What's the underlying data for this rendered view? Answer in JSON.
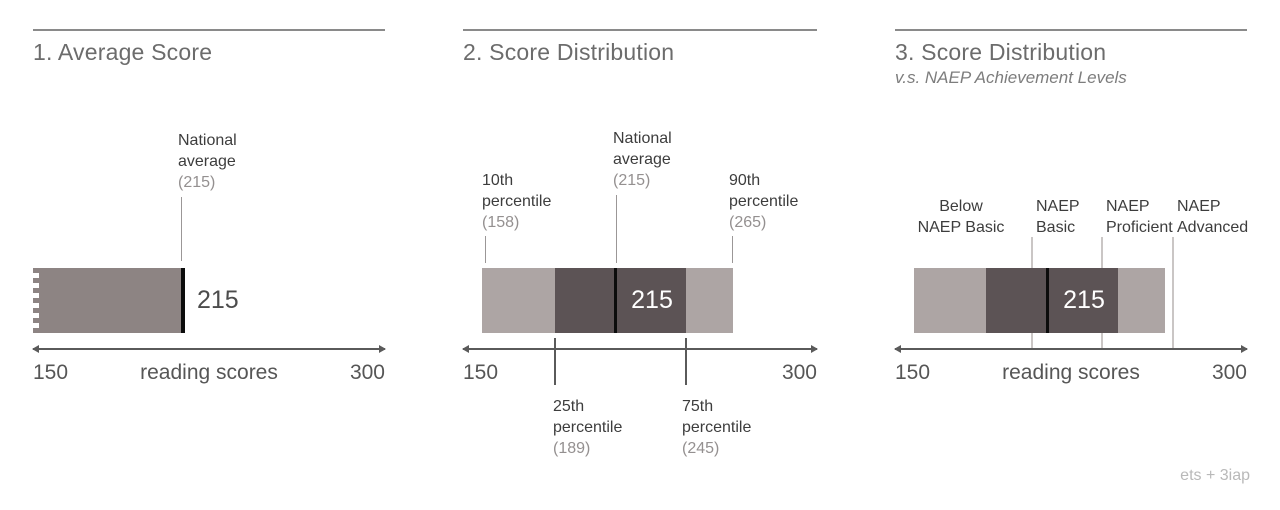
{
  "p1": {
    "title": "1. Average Score",
    "annotation": {
      "l1": "National",
      "l2": "average",
      "l3": "(215)"
    },
    "value": "215",
    "axis": {
      "min": "150",
      "label": "reading scores",
      "max": "300"
    }
  },
  "p2": {
    "title": "2. Score Distribution",
    "ann_p10": {
      "l1": "10th",
      "l2": "percentile",
      "l3": "(158)"
    },
    "ann_avg": {
      "l1": "National",
      "l2": "average",
      "l3": "(215)"
    },
    "ann_p90": {
      "l1": "90th",
      "l2": "percentile",
      "l3": "(265)"
    },
    "ann_p25": {
      "l1": "25th",
      "l2": "percentile",
      "l3": "(189)"
    },
    "ann_p75": {
      "l1": "75th",
      "l2": "percentile",
      "l3": "(245)"
    },
    "value": "215",
    "axis": {
      "min": "150",
      "max": "300"
    }
  },
  "p3": {
    "title": "3. Score Distribution",
    "subtitle": "v.s. NAEP Achievement Levels",
    "lvl_below": {
      "l1": "Below",
      "l2": "NAEP Basic"
    },
    "lvl_basic": {
      "l1": "NAEP",
      "l2": "Basic"
    },
    "lvl_prof": {
      "l1": "NAEP",
      "l2": "Proficient"
    },
    "lvl_adv": {
      "l1": "NAEP",
      "l2": "Advanced"
    },
    "value": "215",
    "axis": {
      "min": "150",
      "label": "reading scores",
      "max": "300"
    }
  },
  "credit": "ets + 3iap",
  "colors": {
    "bar_average": "#8d8483",
    "bar_outer_percentiles": "#ada5a4",
    "bar_inner_quartiles": "#5c5355",
    "median_line": "#0c0c0c",
    "value_on_dark": "#ffffff",
    "reference_line": "#cac6c5",
    "axis": "#5a5a5a",
    "title_gray": "#6c6c6c",
    "muted_label": "#949090"
  },
  "chart_data": [
    {
      "type": "bar",
      "title": "1. Average Score",
      "xlabel": "reading scores",
      "xlim": [
        150,
        300
      ],
      "series": [
        {
          "name": "National average",
          "value": 215
        }
      ],
      "annotations": [
        "National average (215)"
      ],
      "notes": "single horizontal bar from broken axis edge at 150 up to 215; black marker line at 215"
    },
    {
      "type": "bar",
      "title": "2. Score Distribution",
      "xlim": [
        150,
        300
      ],
      "distribution": {
        "p10": 158,
        "p25": 189,
        "national_average": 215,
        "p75": 245,
        "p90": 265
      },
      "segments": [
        {
          "from": 158,
          "to": 189,
          "shade": "light"
        },
        {
          "from": 189,
          "to": 245,
          "shade": "dark"
        },
        {
          "from": 245,
          "to": 265,
          "shade": "light"
        }
      ],
      "annotations": [
        "10th percentile (158)",
        "National average (215)",
        "90th percentile (265)",
        "25th percentile (189)",
        "75th percentile (245)"
      ]
    },
    {
      "type": "bar",
      "title": "3. Score Distribution",
      "subtitle": "v.s. NAEP Achievement Levels",
      "xlabel": "reading scores",
      "xlim": [
        150,
        300
      ],
      "distribution": {
        "p10": 158,
        "p25": 189,
        "national_average": 215,
        "p75": 245,
        "p90": 265
      },
      "segments": [
        {
          "from": 158,
          "to": 189,
          "shade": "light"
        },
        {
          "from": 189,
          "to": 245,
          "shade": "dark"
        },
        {
          "from": 245,
          "to": 265,
          "shade": "light"
        }
      ],
      "reference_lines": [
        {
          "label": "Below NAEP Basic",
          "region_below": 208
        },
        {
          "label": "NAEP Basic",
          "score": 208
        },
        {
          "label": "NAEP Proficient",
          "score": 238
        },
        {
          "label": "NAEP Advanced",
          "score": 268
        }
      ]
    }
  ]
}
